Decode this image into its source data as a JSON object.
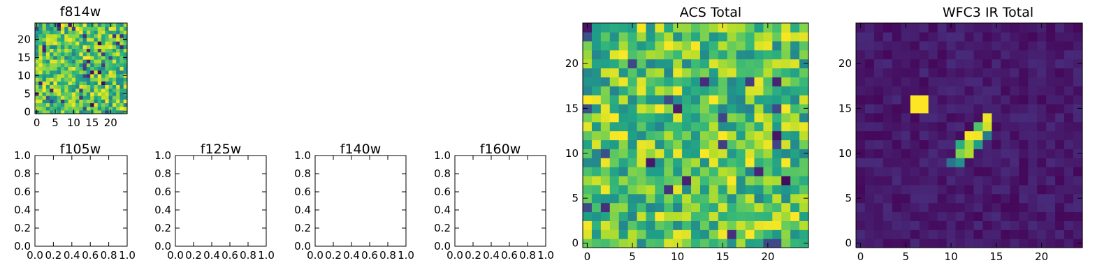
{
  "colormap": {
    "name": "viridis",
    "stops": [
      "#440154",
      "#482878",
      "#3e4a89",
      "#31688e",
      "#26828e",
      "#1f9e89",
      "#35b779",
      "#6ece58",
      "#b5de2b",
      "#fde725"
    ]
  },
  "chart_data": [
    {
      "type": "heatmap",
      "title": "f814w",
      "xlim": [
        -0.5,
        24.5
      ],
      "ylim": [
        -0.5,
        24.5
      ],
      "xticks": [
        0,
        5,
        10,
        15,
        20
      ],
      "yticks": [
        0,
        5,
        10,
        15,
        20
      ],
      "grid": false,
      "pattern": "noise",
      "value_range": [
        0.0,
        1.0
      ],
      "data_note_seed": 11
    },
    {
      "type": "empty",
      "title": "f105w",
      "xlim": [
        0.0,
        1.0
      ],
      "ylim": [
        0.0,
        1.0
      ],
      "xticks": [
        "0.0",
        "0.2",
        "0.4",
        "0.6",
        "0.8",
        "1.0"
      ],
      "yticks": [
        "0.0",
        "0.2",
        "0.4",
        "0.6",
        "0.8",
        "1.0"
      ]
    },
    {
      "type": "empty",
      "title": "f125w",
      "xlim": [
        0.0,
        1.0
      ],
      "ylim": [
        0.0,
        1.0
      ],
      "xticks": [
        "0.0",
        "0.2",
        "0.4",
        "0.6",
        "0.8",
        "1.0"
      ],
      "yticks": [
        "0.0",
        "0.2",
        "0.4",
        "0.6",
        "0.8",
        "1.0"
      ]
    },
    {
      "type": "empty",
      "title": "f140w",
      "xlim": [
        0.0,
        1.0
      ],
      "ylim": [
        0.0,
        1.0
      ],
      "xticks": [
        "0.0",
        "0.2",
        "0.4",
        "0.6",
        "0.8",
        "1.0"
      ],
      "yticks": [
        "0.0",
        "0.2",
        "0.4",
        "0.6",
        "0.8",
        "1.0"
      ]
    },
    {
      "type": "empty",
      "title": "f160w",
      "xlim": [
        0.0,
        1.0
      ],
      "ylim": [
        0.0,
        1.0
      ],
      "xticks": [
        "0.0",
        "0.2",
        "0.4",
        "0.6",
        "0.8",
        "1.0"
      ],
      "yticks": [
        "0.0",
        "0.2",
        "0.4",
        "0.6",
        "0.8",
        "1.0"
      ]
    },
    {
      "type": "heatmap",
      "title": "ACS Total",
      "xlim": [
        -0.5,
        24.5
      ],
      "ylim": [
        -0.5,
        24.5
      ],
      "xticks": [
        0,
        5,
        10,
        15,
        20
      ],
      "yticks": [
        0,
        5,
        10,
        15,
        20
      ],
      "grid": false,
      "pattern": "noise",
      "value_range": [
        0.0,
        1.0
      ]
    },
    {
      "type": "heatmap",
      "title": "WFC3 IR Total",
      "xlim": [
        -0.5,
        24.5
      ],
      "ylim": [
        -0.5,
        24.5
      ],
      "xticks": [
        0,
        5,
        10,
        15,
        20
      ],
      "yticks": [
        0,
        5,
        10,
        15,
        20
      ],
      "grid": false,
      "pattern": "background_with_sources",
      "value_range": [
        0.0,
        1.0
      ],
      "sources": [
        {
          "x": 6,
          "y": 15,
          "value": 1.0
        },
        {
          "x": 7,
          "y": 15,
          "value": 1.0
        },
        {
          "x": 6,
          "y": 16,
          "value": 1.0
        },
        {
          "x": 7,
          "y": 16,
          "value": 1.0
        },
        {
          "x": 14,
          "y": 14,
          "value": 0.97
        },
        {
          "x": 13,
          "y": 13,
          "value": 0.72
        },
        {
          "x": 14,
          "y": 13,
          "value": 0.93
        },
        {
          "x": 12,
          "y": 12,
          "value": 0.99
        },
        {
          "x": 13,
          "y": 12,
          "value": 0.98
        },
        {
          "x": 14,
          "y": 12,
          "value": 0.42
        },
        {
          "x": 11,
          "y": 11,
          "value": 0.62
        },
        {
          "x": 12,
          "y": 11,
          "value": 0.86
        },
        {
          "x": 13,
          "y": 11,
          "value": 0.55
        },
        {
          "x": 11,
          "y": 10,
          "value": 0.8
        },
        {
          "x": 12,
          "y": 10,
          "value": 0.88
        },
        {
          "x": 10,
          "y": 9,
          "value": 0.38
        },
        {
          "x": 11,
          "y": 9,
          "value": 0.5
        }
      ]
    }
  ]
}
